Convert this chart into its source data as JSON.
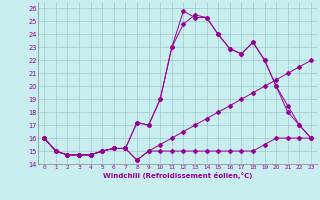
{
  "xlabel": "Windchill (Refroidissement éolien,°C)",
  "bg_color": "#c8eef0",
  "line_color": "#990099",
  "grid_color": "#a0c8cc",
  "xlim": [
    -0.5,
    23.5
  ],
  "ylim": [
    14,
    26.5
  ],
  "yticks": [
    14,
    15,
    16,
    17,
    18,
    19,
    20,
    21,
    22,
    23,
    24,
    25,
    26
  ],
  "xticks": [
    0,
    1,
    2,
    3,
    4,
    5,
    6,
    7,
    8,
    9,
    10,
    11,
    12,
    13,
    14,
    15,
    16,
    17,
    18,
    19,
    20,
    21,
    22,
    23
  ],
  "line1_x": [
    0,
    1,
    2,
    3,
    4,
    5,
    6,
    7,
    8,
    9,
    10,
    11,
    12,
    13,
    14,
    15,
    16,
    17,
    18,
    19,
    20,
    21,
    22,
    23
  ],
  "line1_y": [
    16.0,
    15.0,
    14.7,
    14.7,
    14.7,
    15.0,
    15.2,
    15.2,
    14.3,
    15.0,
    15.0,
    15.0,
    15.0,
    15.0,
    15.0,
    15.0,
    15.0,
    15.0,
    15.0,
    15.5,
    16.0,
    16.0,
    16.0,
    16.0
  ],
  "line2_x": [
    0,
    1,
    2,
    3,
    4,
    5,
    6,
    7,
    8,
    9,
    10,
    11,
    12,
    13,
    14,
    15,
    16,
    17,
    18,
    19,
    20,
    21,
    22,
    23
  ],
  "line2_y": [
    16.0,
    15.0,
    14.7,
    14.7,
    14.7,
    15.0,
    15.2,
    15.2,
    17.2,
    17.0,
    19.0,
    23.0,
    24.8,
    25.5,
    25.3,
    24.0,
    22.9,
    22.5,
    23.4,
    22.0,
    20.0,
    18.0,
    17.0,
    16.0
  ],
  "line3_x": [
    0,
    1,
    2,
    3,
    4,
    5,
    6,
    7,
    8,
    9,
    10,
    11,
    12,
    13,
    14,
    15,
    16,
    17,
    18,
    19,
    20,
    21,
    22,
    23
  ],
  "line3_y": [
    16.0,
    15.0,
    14.7,
    14.7,
    14.7,
    15.0,
    15.2,
    15.2,
    17.2,
    17.0,
    19.0,
    23.0,
    25.8,
    25.3,
    25.3,
    24.0,
    22.9,
    22.5,
    23.4,
    22.0,
    20.0,
    18.5,
    17.0,
    16.0
  ],
  "line4_x": [
    0,
    1,
    2,
    3,
    4,
    5,
    6,
    7,
    8,
    9,
    10,
    11,
    12,
    13,
    14,
    15,
    16,
    17,
    18,
    19,
    20,
    21,
    22,
    23
  ],
  "line4_y": [
    16.0,
    15.0,
    14.7,
    14.7,
    14.7,
    15.0,
    15.2,
    15.2,
    14.3,
    15.0,
    15.5,
    16.0,
    16.5,
    17.0,
    17.5,
    18.0,
    18.5,
    19.0,
    19.5,
    20.0,
    20.5,
    21.0,
    21.5,
    22.0
  ]
}
